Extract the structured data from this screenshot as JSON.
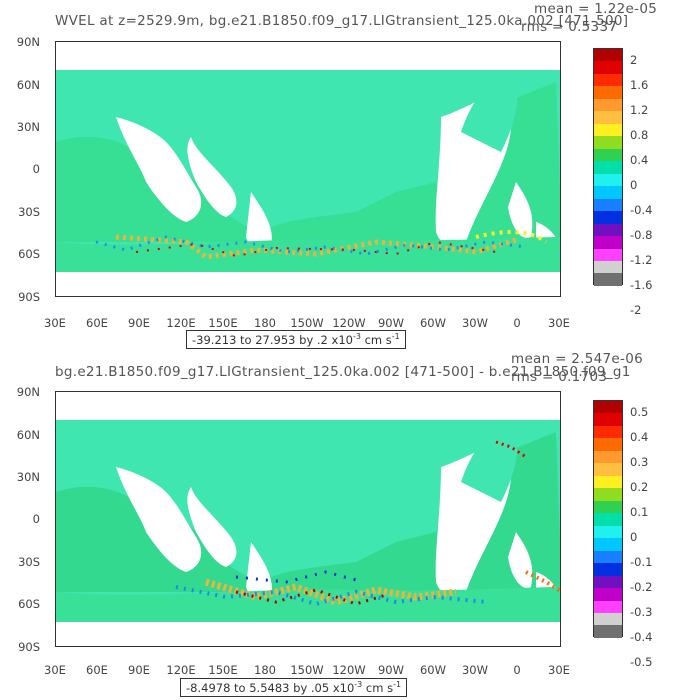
{
  "panels": [
    {
      "title": "WVEL at z=2529.9m, bg.e21.B1850.f09_g17.LIGtransient_125.0ka.002 [471-500]",
      "mean": "mean = 1.22e-05",
      "rms": "rms = 0.5337",
      "range_text": "-39.213 to 27.953 by .2 x10",
      "range_units": " cm s",
      "colorbar_labels": [
        "2",
        "1.6",
        "1.2",
        "0.8",
        "0.4",
        "0",
        "-0.4",
        "-0.8",
        "-1.2",
        "-1.6",
        "-2"
      ]
    },
    {
      "title": "bg.e21.B1850.f09_g17.LIGtransient_125.0ka.002 [471-500] - b.e21.B1850.f09_g1",
      "mean": "mean = 2.547e-06",
      "rms": "rms = 0.1703",
      "range_text": "-8.4978 to 5.5483 by .05 x10",
      "range_units": " cm s",
      "colorbar_labels": [
        "0.5",
        "0.4",
        "0.3",
        "0.2",
        "0.1",
        "0",
        "-0.1",
        "-0.2",
        "-0.3",
        "-0.4",
        "-0.5"
      ]
    }
  ],
  "lat_labels": [
    "90N",
    "60N",
    "30N",
    "0",
    "30S",
    "60S",
    "90S"
  ],
  "lon_labels": [
    "30E",
    "60E",
    "90E",
    "120E",
    "150E",
    "180",
    "150W",
    "120W",
    "90W",
    "60W",
    "30W",
    "0",
    "30E"
  ],
  "colors": [
    "#b00000",
    "#e00000",
    "#ff2a00",
    "#ff6a00",
    "#ff9a30",
    "#ffc040",
    "#ffee20",
    "#90dd20",
    "#30d050",
    "#00e0a8",
    "#20f0f0",
    "#00c8ff",
    "#1880ff",
    "#0030e0",
    "#7010c0",
    "#c000c8",
    "#ff40ff",
    "#d0d0d0",
    "#707070"
  ]
}
